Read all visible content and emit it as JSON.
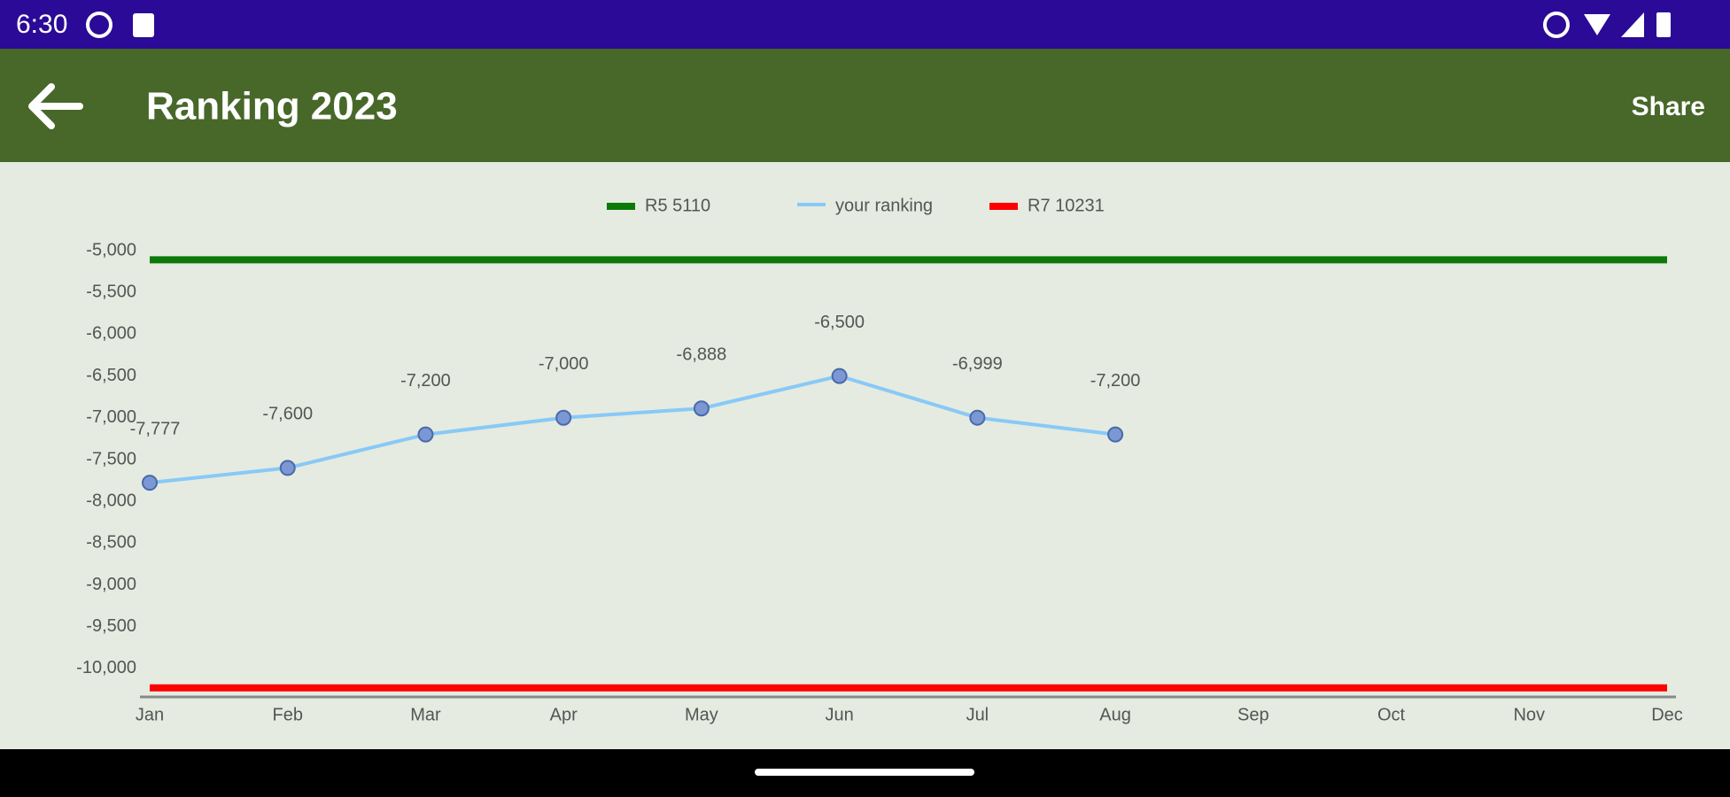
{
  "status_bar": {
    "time": "6:30"
  },
  "app_bar": {
    "title": "Ranking 2023",
    "action": "Share"
  },
  "chart_data": {
    "type": "line",
    "categories": [
      "Jan",
      "Feb",
      "Mar",
      "Apr",
      "May",
      "Jun",
      "Jul",
      "Aug",
      "Sep",
      "Oct",
      "Nov",
      "Dec"
    ],
    "series": [
      {
        "name": "R5 5110",
        "color": "#0b7a0b",
        "values": [
          -5110,
          -5110,
          -5110,
          -5110,
          -5110,
          -5110,
          -5110,
          -5110,
          -5110,
          -5110,
          -5110,
          -5110
        ]
      },
      {
        "name": "your ranking",
        "color": "#88c9f7",
        "marker_color": "#7b98d4",
        "values": [
          -7777,
          -7600,
          -7200,
          -7000,
          -6888,
          -6500,
          -6999,
          -7200,
          null,
          null,
          null,
          null
        ],
        "value_labels": [
          "-7,777",
          "-7,600",
          "-7,200",
          "-7,000",
          "-6,888",
          "-6,500",
          "-6,999",
          "-7,200",
          null,
          null,
          null,
          null
        ]
      },
      {
        "name": "R7 10231",
        "color": "#ff0000",
        "values": [
          -10231,
          -10231,
          -10231,
          -10231,
          -10231,
          -10231,
          -10231,
          -10231,
          -10231,
          -10231,
          -10231,
          -10231
        ]
      }
    ],
    "ylim": [
      -10340,
      -4900
    ],
    "yticks": [
      {
        "value": -5000,
        "label": "-5,000"
      },
      {
        "value": -5500,
        "label": "-5,500"
      },
      {
        "value": -6000,
        "label": "-6,000"
      },
      {
        "value": -6500,
        "label": "-6,500"
      },
      {
        "value": -7000,
        "label": "-7,000"
      },
      {
        "value": -7500,
        "label": "-7,500"
      },
      {
        "value": -8000,
        "label": "-8,000"
      },
      {
        "value": -8500,
        "label": "-8,500"
      },
      {
        "value": -9000,
        "label": "-9,000"
      },
      {
        "value": -9500,
        "label": "-9,500"
      },
      {
        "value": -10000,
        "label": "-10,000"
      }
    ],
    "grid": false,
    "legend": "top"
  }
}
